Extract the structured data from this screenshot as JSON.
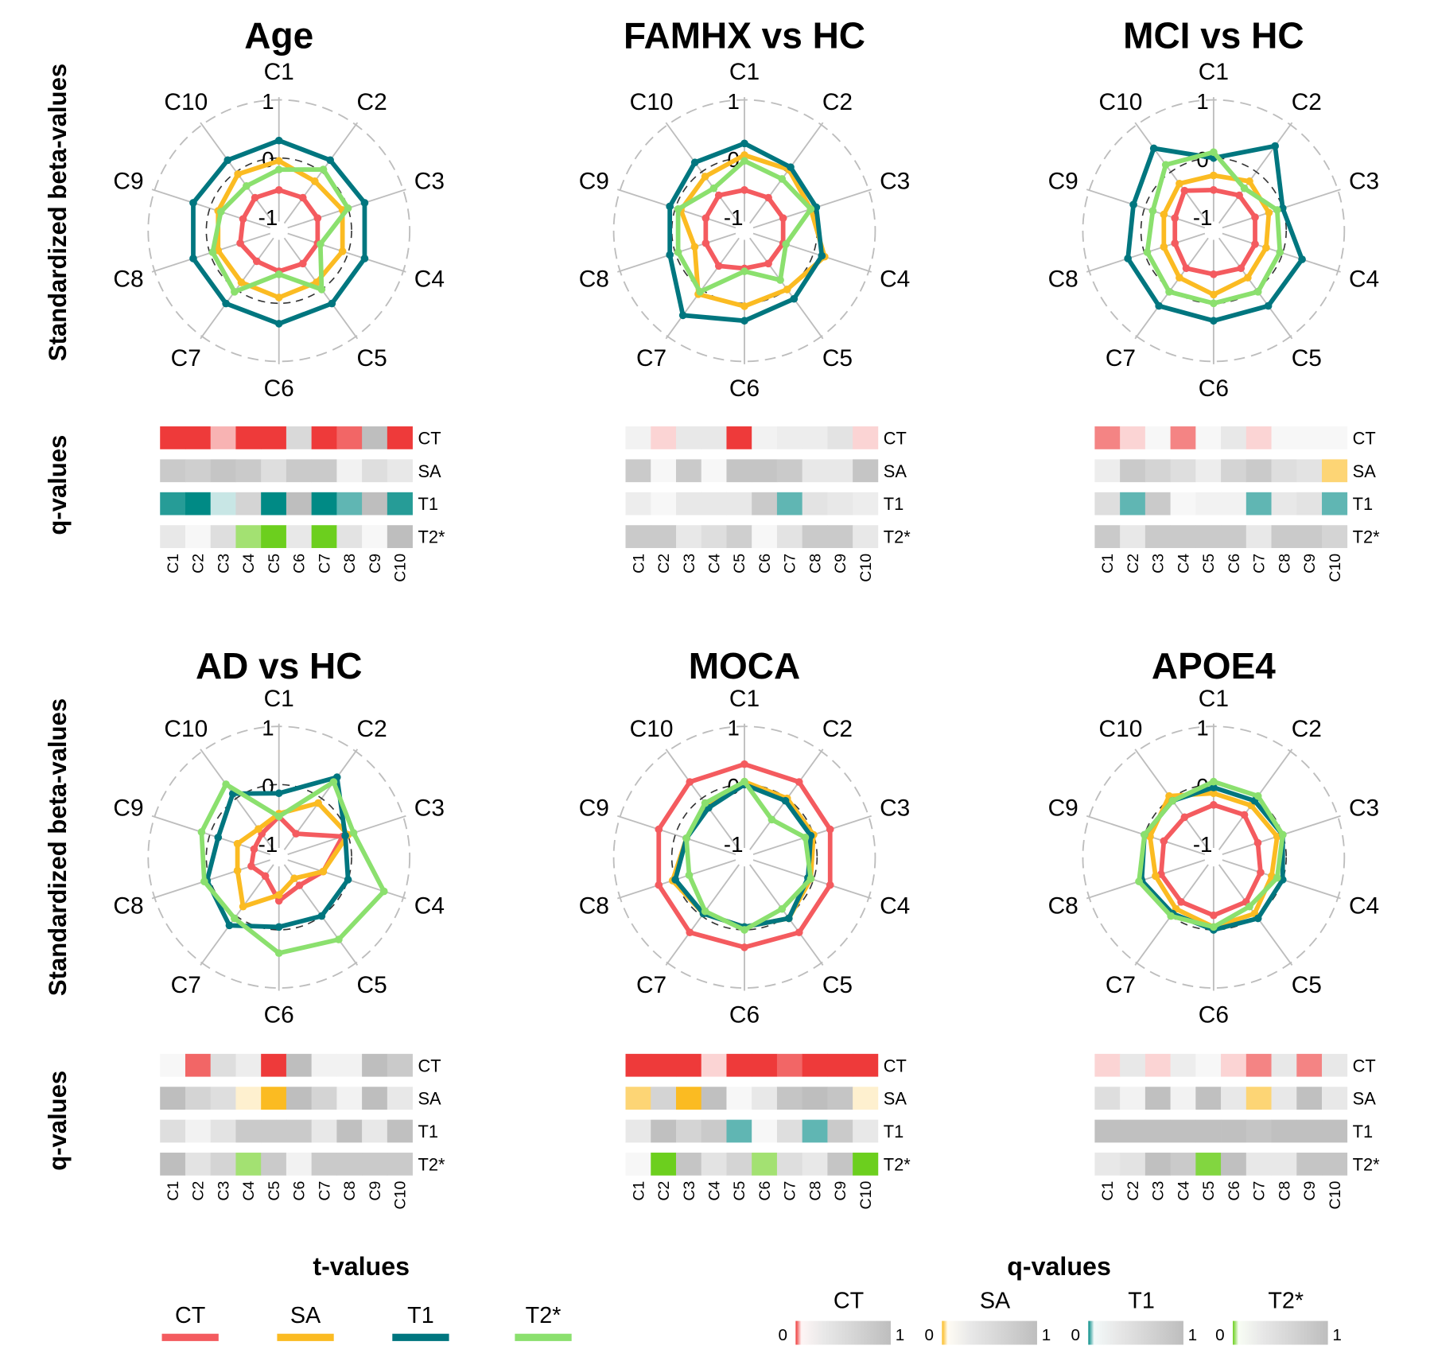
{
  "figure": {
    "row_ylabels": {
      "radar": "Standardized beta-values",
      "heatmap": "q-values"
    },
    "legend_t": {
      "title": "t-values"
    },
    "legend_q": {
      "title": "q-values",
      "min_label": "0",
      "max_label": "1"
    }
  },
  "chart_data": {
    "type": "radar",
    "axes": [
      "C1",
      "C2",
      "C3",
      "C4",
      "C5",
      "C6",
      "C7",
      "C8",
      "C9",
      "C10"
    ],
    "ring_labels": [
      "1",
      "0",
      "-1"
    ],
    "ring_values": [
      1,
      0,
      -1
    ],
    "range": [
      -1.25,
      1
    ],
    "series_meta": [
      {
        "name": "CT",
        "color": "#F45B5F"
      },
      {
        "name": "SA",
        "color": "#FBBB22"
      },
      {
        "name": "T1",
        "color": "#00767F"
      },
      {
        "name": "T2*",
        "color": "#8BE06E"
      }
    ],
    "heatmap_rows": [
      "CT",
      "SA",
      "T1",
      "T2*"
    ],
    "heatmap_colors": {
      "CT": "#EE3A3A",
      "SA": "#FBBB22",
      "T1": "#008A85",
      "T2*": "#6CCF1E"
    },
    "panels": [
      {
        "title": "Age",
        "series": {
          "CT": [
            -0.55,
            -0.55,
            -0.55,
            -0.55,
            -0.55,
            -0.55,
            -0.6,
            -0.55,
            -0.6,
            -0.55
          ],
          "SA": [
            -0.05,
            -0.2,
            -0.1,
            -0.1,
            -0.15,
            -0.1,
            -0.15,
            -0.15,
            -0.15,
            -0.05
          ],
          "T1": [
            0.3,
            0.25,
            0.3,
            0.3,
            0.3,
            0.35,
            0.3,
            0.3,
            0.3,
            0.25
          ],
          "T2*": [
            -0.2,
            0.05,
            0.0,
            -0.5,
            0.0,
            -0.5,
            0.05,
            -0.05,
            -0.2,
            -0.3
          ]
        },
        "qvalues": {
          "CT": [
            0.0,
            0.0,
            0.08,
            0.0,
            0.0,
            0.45,
            0.0,
            0.03,
            1.0,
            0.0
          ],
          "SA": [
            0.6,
            0.55,
            0.65,
            0.6,
            0.4,
            0.6,
            0.6,
            0.2,
            0.4,
            0.3
          ],
          "T1": [
            0.02,
            0.0,
            0.1,
            0.5,
            0.0,
            1.0,
            0.0,
            0.05,
            1.0,
            0.02
          ],
          "T2*": [
            0.3,
            0.15,
            0.4,
            0.05,
            0.0,
            0.3,
            0.0,
            0.35,
            0.15,
            1.0
          ]
        }
      },
      {
        "title": "FAMHX vs HC",
        "series": {
          "CT": [
            -0.55,
            -0.55,
            -0.55,
            -0.55,
            -0.55,
            -0.6,
            -0.5,
            -0.55,
            -0.55,
            -0.5
          ],
          "SA": [
            0.05,
            0.05,
            -0.05,
            0.2,
            0.0,
            0.05,
            0.1,
            -0.35,
            -0.1,
            -0.1
          ],
          "T1": [
            0.25,
            0.1,
            0.05,
            0.15,
            0.2,
            0.3,
            0.55,
            0.1,
            0.1,
            0.2
          ],
          "T2*": [
            -0.05,
            -0.15,
            -0.05,
            -0.5,
            -0.2,
            -0.55,
            0.05,
            -0.05,
            -0.05,
            -0.35
          ]
        },
        "qvalues": {
          "CT": [
            0.2,
            0.1,
            0.3,
            0.3,
            0.0,
            0.2,
            0.25,
            0.25,
            0.35,
            0.1
          ],
          "SA": [
            0.6,
            0.15,
            0.6,
            0.15,
            0.65,
            0.65,
            0.6,
            0.3,
            0.3,
            0.65
          ],
          "T1": [
            0.25,
            0.15,
            0.3,
            0.3,
            0.3,
            0.6,
            0.05,
            0.35,
            0.3,
            0.25
          ],
          "T2*": [
            0.6,
            0.6,
            0.3,
            0.4,
            0.55,
            0.15,
            0.35,
            0.6,
            0.6,
            0.3
          ]
        }
      },
      {
        "title": "MCI vs HC",
        "series": {
          "CT": [
            -0.55,
            -0.5,
            -0.5,
            -0.5,
            -0.45,
            -0.5,
            -0.45,
            -0.55,
            -0.55,
            -0.4
          ],
          "SA": [
            -0.3,
            -0.2,
            -0.25,
            -0.3,
            -0.25,
            -0.15,
            -0.25,
            -0.35,
            -0.35,
            -0.25
          ],
          "T1": [
            0.0,
            0.55,
            0.0,
            0.35,
            0.35,
            0.3,
            0.35,
            0.3,
            0.2,
            0.5
          ],
          "T2*": [
            0.1,
            -0.35,
            -0.1,
            -0.05,
            0.05,
            0.0,
            0.05,
            -0.05,
            -0.15,
            0.15
          ]
        },
        "qvalues": {
          "CT": [
            0.05,
            0.1,
            0.15,
            0.05,
            0.15,
            0.3,
            0.1,
            0.15,
            0.15,
            0.15
          ],
          "SA": [
            0.25,
            0.6,
            0.5,
            0.4,
            0.25,
            0.5,
            0.6,
            0.4,
            0.35,
            0.05
          ],
          "T1": [
            0.4,
            0.05,
            0.6,
            0.15,
            0.2,
            0.2,
            0.05,
            0.3,
            0.35,
            0.05
          ],
          "T2*": [
            0.6,
            0.3,
            0.6,
            0.6,
            0.6,
            0.6,
            0.3,
            0.6,
            0.6,
            0.5
          ]
        }
      },
      {
        "title": "AD vs HC",
        "series": {
          "CT": [
            -0.55,
            -0.75,
            -0.1,
            -0.45,
            -0.65,
            -0.5,
            -0.85,
            -0.75,
            -0.8,
            -0.75
          ],
          "SA": [
            -0.5,
            -0.1,
            0.0,
            -0.45,
            -0.8,
            -0.6,
            -0.2,
            -0.5,
            -0.5,
            -0.65
          ],
          "T1": [
            -0.15,
            0.45,
            -0.05,
            0.0,
            0.0,
            -0.05,
            0.2,
            0.05,
            -0.15,
            0.1
          ],
          "T2*": [
            -0.55,
            0.35,
            0.1,
            0.65,
            0.5,
            0.4,
            0.05,
            0.1,
            0.15,
            0.3
          ]
        },
        "qvalues": {
          "CT": [
            0.15,
            0.03,
            0.4,
            0.25,
            0.0,
            1.0,
            0.2,
            0.2,
            1.0,
            0.6
          ],
          "SA": [
            1.0,
            0.5,
            0.4,
            0.1,
            0.0,
            1.0,
            0.5,
            0.2,
            1.0,
            0.3
          ],
          "T1": [
            0.4,
            0.2,
            0.35,
            0.6,
            0.6,
            0.6,
            0.3,
            0.7,
            0.3,
            0.7
          ],
          "T2*": [
            1.0,
            0.35,
            0.5,
            0.05,
            0.6,
            0.2,
            0.6,
            0.6,
            0.6,
            0.6
          ]
        }
      },
      {
        "title": "MOCA",
        "series": {
          "CT": [
            0.35,
            0.35,
            0.3,
            0.3,
            0.35,
            0.3,
            0.35,
            0.3,
            0.3,
            0.35
          ],
          "SA": [
            0.05,
            0.0,
            0.0,
            -0.05,
            0.05,
            -0.05,
            -0.05,
            0.05,
            -0.2,
            -0.15
          ],
          "T1": [
            0.0,
            -0.05,
            -0.05,
            -0.1,
            0.05,
            -0.05,
            -0.05,
            0.0,
            -0.2,
            -0.2
          ],
          "T2*": [
            0.05,
            -0.45,
            -0.15,
            -0.05,
            -0.15,
            0.0,
            -0.1,
            -0.25,
            -0.2,
            -0.1
          ]
        },
        "qvalues": {
          "CT": [
            0.0,
            0.0,
            0.0,
            0.1,
            0.0,
            0.0,
            0.03,
            0.0,
            0.0,
            0.0
          ],
          "SA": [
            0.05,
            0.5,
            0.0,
            0.7,
            0.15,
            0.3,
            0.65,
            0.8,
            0.65,
            0.1
          ],
          "T1": [
            0.3,
            0.7,
            0.5,
            0.6,
            0.05,
            0.15,
            0.4,
            0.05,
            0.6,
            0.3
          ],
          "T2*": [
            0.15,
            0.0,
            0.65,
            0.35,
            0.5,
            0.05,
            0.4,
            0.3,
            0.65,
            0.0
          ]
        }
      },
      {
        "title": "APOE4",
        "series": {
          "CT": [
            -0.35,
            -0.35,
            -0.45,
            -0.4,
            -0.3,
            -0.25,
            -0.3,
            -0.3,
            -0.35,
            -0.4
          ],
          "SA": [
            -0.15,
            -0.15,
            -0.1,
            -0.2,
            -0.05,
            -0.05,
            -0.15,
            -0.2,
            -0.1,
            0.05
          ],
          "T1": [
            -0.05,
            -0.05,
            0.0,
            0.0,
            0.05,
            0.0,
            -0.05,
            0.05,
            0.0,
            -0.05
          ],
          "T2*": [
            0.05,
            0.05,
            0.0,
            -0.1,
            -0.2,
            -0.05,
            0.0,
            0.1,
            0.0,
            -0.05
          ]
        },
        "qvalues": {
          "CT": [
            0.1,
            0.3,
            0.1,
            0.25,
            0.15,
            0.1,
            0.05,
            0.3,
            0.05,
            0.3
          ],
          "SA": [
            0.4,
            0.2,
            0.7,
            0.2,
            0.7,
            0.3,
            0.05,
            0.3,
            0.7,
            0.3
          ],
          "T1": [
            0.7,
            0.7,
            0.7,
            0.7,
            0.7,
            0.7,
            0.65,
            0.7,
            0.7,
            0.7
          ],
          "T2*": [
            0.3,
            0.35,
            0.7,
            0.6,
            0.02,
            0.7,
            0.3,
            0.3,
            0.65,
            0.65
          ]
        }
      }
    ]
  }
}
